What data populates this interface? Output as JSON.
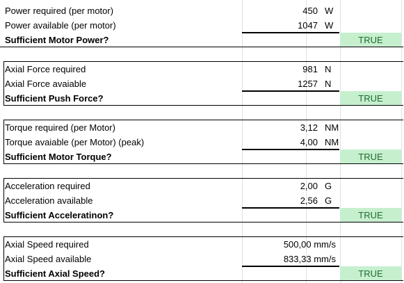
{
  "sections": [
    {
      "rows": [
        {
          "label": "Power required (per motor)",
          "value": "450",
          "unit": "W"
        },
        {
          "label": "Power available (per motor)",
          "value": "1047",
          "unit": "W"
        }
      ],
      "summary_label": "Sufficient Motor Power?",
      "result": "TRUE"
    },
    {
      "rows": [
        {
          "label": "Axial Force required",
          "value": "981",
          "unit": "N"
        },
        {
          "label": "Axial Force avaiable",
          "value": "1257",
          "unit": "N"
        }
      ],
      "summary_label": "Sufficient Push Force?",
      "result": "TRUE"
    },
    {
      "rows": [
        {
          "label": "Torque required (per Motor)",
          "value": "3,12",
          "unit": "NM"
        },
        {
          "label": "Torque  avaiable (per Motor) (peak)",
          "value": "4,00",
          "unit": "NM"
        }
      ],
      "summary_label": "Sufficient Motor Torque?",
      "result": "TRUE"
    },
    {
      "rows": [
        {
          "label": "Acceleration required",
          "value": "2,00",
          "unit": "G"
        },
        {
          "label": "Acceleration available",
          "value": "2,56",
          "unit": "G"
        }
      ],
      "summary_label": "Sufficient Acceleratinon?",
      "result": "TRUE"
    },
    {
      "rows": [
        {
          "label": "Axial Speed required",
          "value": "500,00",
          "unit": "mm/s"
        },
        {
          "label": "Axial Speed available",
          "value": "833,33",
          "unit": "mm/s"
        }
      ],
      "summary_label": "Sufficient Axial Speed?",
      "result": "TRUE"
    }
  ],
  "colors": {
    "true_fill": "#c6efce",
    "true_text": "#1f6b2f",
    "gridline": "#e1e1e1"
  }
}
